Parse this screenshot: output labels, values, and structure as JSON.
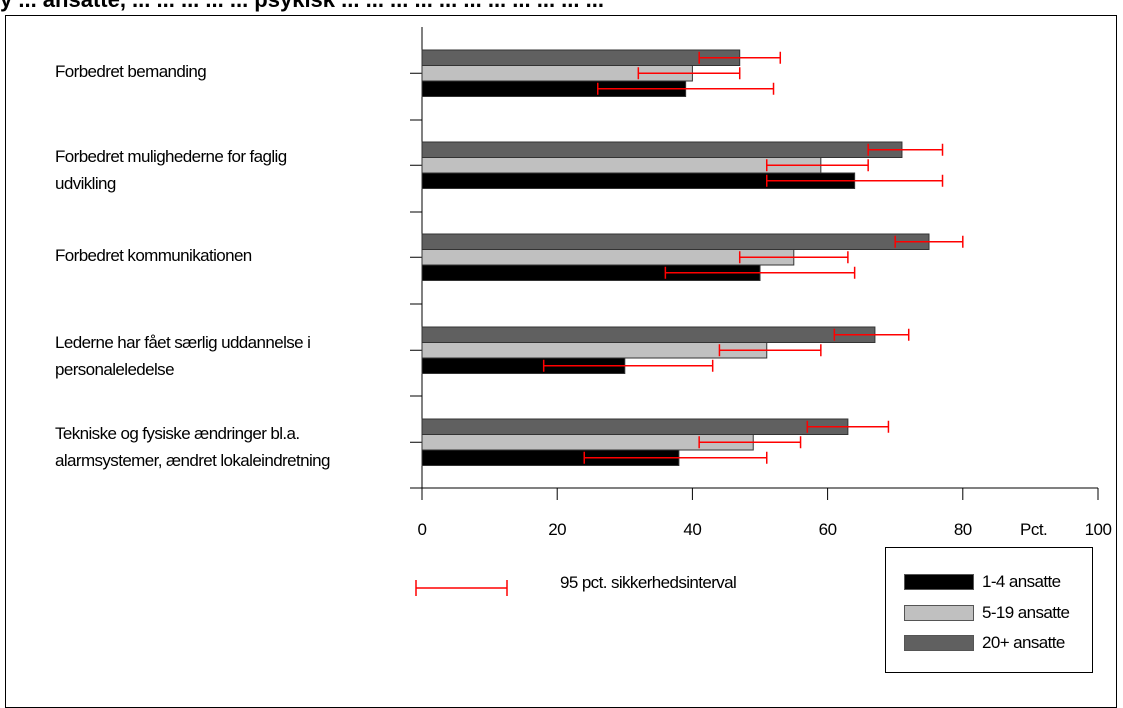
{
  "header": {
    "title": "y ... ansatte, ... ... ... ... ... psykisk ... ... ... ... ... ... ... ... ... ... ..."
  },
  "chart_data": {
    "type": "bar",
    "orientation": "horizontal",
    "categories": [
      "Forbedret bemanding",
      "Forbedret mulighederne for faglig\nudvikling",
      "Forbedret kommunikationen",
      "Lederne har fået særlig uddannelse i\npersonaleledelse",
      "Tekniske og fysiske ændringer bl.a.\n alarmsystemer, ændret lokaleindretning"
    ],
    "series": [
      {
        "name": "1-4 ansatte",
        "color": "#000000",
        "values": [
          39,
          64,
          50,
          30,
          38
        ],
        "ci": [
          [
            26,
            52
          ],
          [
            51,
            77
          ],
          [
            36,
            64
          ],
          [
            18,
            43
          ],
          [
            24,
            51
          ]
        ]
      },
      {
        "name": "5-19 ansatte",
        "color": "#c0c0c0",
        "values": [
          40,
          59,
          55,
          51,
          49
        ],
        "ci": [
          [
            32,
            47
          ],
          [
            51,
            66
          ],
          [
            47,
            63
          ],
          [
            44,
            59
          ],
          [
            41,
            56
          ]
        ]
      },
      {
        "name": "20+ ansatte",
        "color": "#606060",
        "values": [
          47,
          71,
          75,
          67,
          63
        ],
        "ci": [
          [
            41,
            53
          ],
          [
            66,
            77
          ],
          [
            70,
            80
          ],
          [
            61,
            72
          ],
          [
            57,
            69
          ]
        ]
      }
    ],
    "xlim": [
      0,
      100
    ],
    "xticks": [
      "0",
      "20",
      "40",
      "60",
      "80",
      "100"
    ],
    "unit_label": "Pct.",
    "ci_legend_label": "95 pct. sikkerhedsinterval",
    "ci_color": "#ff0000",
    "legend_position": "bottom-right",
    "grid": false
  }
}
